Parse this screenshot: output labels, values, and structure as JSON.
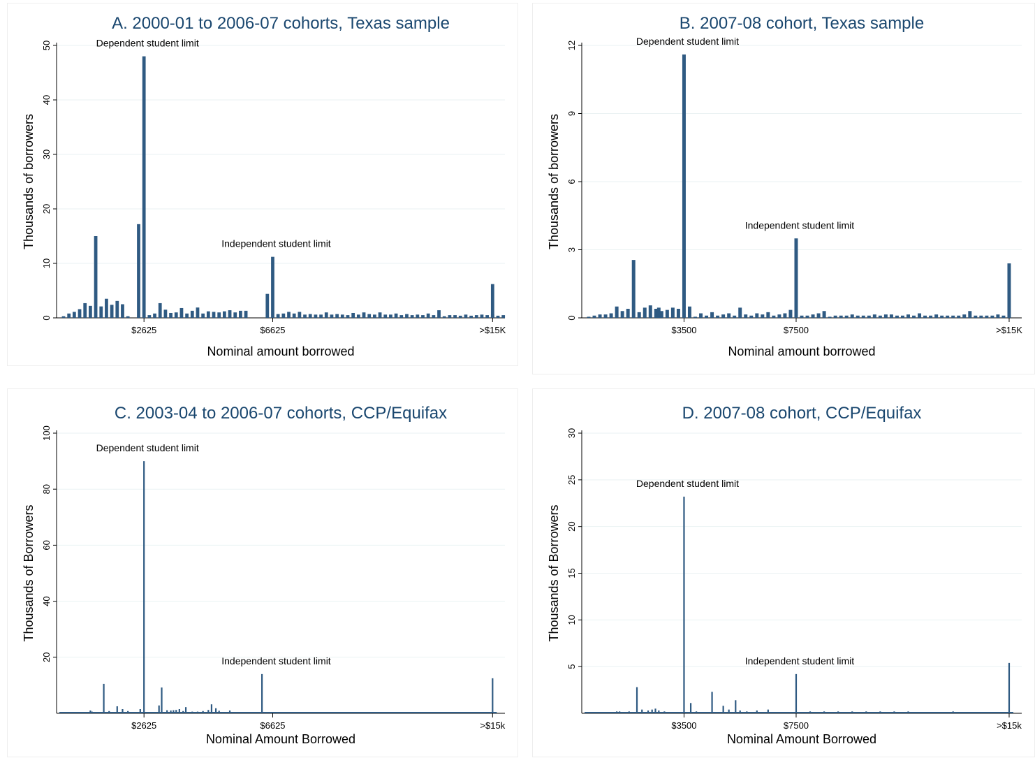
{
  "colors": {
    "bar": "#2f5a82",
    "title": "#1a476f",
    "grid": "#eaf2f3"
  },
  "chart_data": [
    {
      "type": "bar",
      "title": "A. 2000-01 to 2006-07 cohorts, Texas sample",
      "xlabel": "Nominal amount borrowed",
      "ylabel": "Thousands of borrowers",
      "ylim": [
        0,
        50
      ],
      "yticks": [
        0,
        10,
        20,
        30,
        40,
        50
      ],
      "xticks": [
        {
          "label": "$2625",
          "bin": 15
        },
        {
          "label": "$6625",
          "bin": 39
        },
        {
          "label": ">$15K",
          "bin": 80
        }
      ],
      "grid": true,
      "bar_style": "bar",
      "annotations": [
        {
          "text": "Dependent student limit",
          "bin": 15,
          "y": 48
        },
        {
          "text": "Independent student limit",
          "bin": 39,
          "y": 11.2
        }
      ],
      "values": [
        0.3,
        0.8,
        1.1,
        1.6,
        2.7,
        2.2,
        15,
        2.1,
        3.5,
        2.4,
        3.1,
        2.5,
        0.3,
        17.2,
        48,
        0.5,
        0.8,
        2.7,
        1.5,
        0.9,
        1.0,
        1.8,
        0.8,
        1.3,
        1.9,
        0.8,
        1.2,
        1.1,
        1.0,
        1.2,
        1.4,
        1.0,
        1.3,
        1.3,
        4.4,
        11.2,
        0.7,
        0.8,
        1.1,
        0.8,
        1.1,
        0.6,
        0.7,
        0.6,
        0.6,
        1.0,
        0.6,
        0.7,
        0.6,
        0.5,
        0.9,
        0.6,
        1.0,
        0.7,
        0.6,
        1.0,
        0.6,
        0.6,
        0.8,
        0.5,
        0.7,
        0.5,
        0.6,
        0.5,
        0.8,
        0.5,
        1.4,
        0.3,
        0.5,
        0.5,
        0.4,
        0.6,
        0.4,
        0.5,
        0.6,
        0.5,
        0.6,
        0.4,
        0.5,
        6.2
      ],
      "value_bins": [
        0,
        1,
        2,
        3,
        4,
        5,
        6,
        7,
        8,
        9,
        10,
        11,
        12,
        14,
        15,
        16,
        17,
        18,
        19,
        20,
        21,
        22,
        23,
        24,
        25,
        26,
        27,
        28,
        29,
        30,
        31,
        32,
        33,
        34,
        38,
        39,
        40,
        41,
        42,
        43,
        44,
        45,
        46,
        47,
        48,
        49,
        50,
        51,
        52,
        53,
        54,
        55,
        56,
        57,
        58,
        59,
        60,
        61,
        62,
        63,
        64,
        65,
        66,
        67,
        68,
        69,
        70,
        71,
        72,
        73,
        74,
        75,
        76,
        77,
        78,
        79,
        80,
        81,
        82,
        80
      ]
    },
    {
      "type": "bar",
      "title": "B. 2007-08 cohort, Texas sample",
      "xlabel": "Nominal amount borrowed",
      "ylabel": "Thousands of borrowers",
      "ylim": [
        0,
        12
      ],
      "yticks": [
        0,
        3,
        6,
        9,
        12
      ],
      "xticks": [
        {
          "label": "$3500",
          "bin": 17
        },
        {
          "label": "$7500",
          "bin": 37
        },
        {
          "label": ">$15K",
          "bin": 75
        }
      ],
      "grid": true,
      "bar_style": "bar",
      "annotations": [
        {
          "text": "Dependent student limit",
          "bin": 17,
          "y": 11.6
        },
        {
          "text": "Independent student limit",
          "bin": 37,
          "y": 3.5
        }
      ],
      "values": [
        0.05,
        0.1,
        0.15,
        0.15,
        0.2,
        0.5,
        0.3,
        0.4,
        2.55,
        0.25,
        0.45,
        0.55,
        0.4,
        0.45,
        0.3,
        0.35,
        0.45,
        0.4,
        11.6,
        0.5,
        0.05,
        0.2,
        0.1,
        0.25,
        0.1,
        0.15,
        0.2,
        0.1,
        0.45,
        0.15,
        0.1,
        0.2,
        0.15,
        0.25,
        0.1,
        0.15,
        0.2,
        0.35,
        3.5,
        0.1,
        0.1,
        0.15,
        0.2,
        0.3,
        0.05,
        0.1,
        0.1,
        0.1,
        0.15,
        0.1,
        0.1,
        0.1,
        0.15,
        0.1,
        0.15,
        0.15,
        0.1,
        0.1,
        0.15,
        0.1,
        0.2,
        0.1,
        0.1,
        0.15,
        0.1,
        0.1,
        0.1,
        0.1,
        0.15,
        0.3,
        0.1,
        0.1,
        0.1,
        0.1,
        0.15,
        0.1,
        2.4
      ],
      "value_bins": [
        0,
        1,
        2,
        3,
        4,
        5,
        6,
        7,
        8,
        9,
        10,
        11,
        12,
        12.5,
        13,
        14,
        15,
        16,
        17,
        18,
        19,
        20,
        21,
        22,
        23,
        24,
        25,
        26,
        27,
        28,
        29,
        30,
        31,
        32,
        33,
        34,
        35,
        36,
        37,
        38,
        39,
        40,
        41,
        42,
        43,
        44,
        45,
        46,
        47,
        48,
        49,
        50,
        51,
        52,
        53,
        54,
        55,
        56,
        57,
        58,
        59,
        60,
        61,
        62,
        63,
        64,
        65,
        66,
        67,
        68,
        69,
        70,
        71,
        72,
        73,
        74,
        75
      ]
    },
    {
      "type": "bar",
      "title": "C. 2003-04 to 2006-07 cohorts, CCP/Equifax",
      "xlabel": "Nominal Amount Borrowed",
      "ylabel": "Thousands of Borrowers",
      "ylim": [
        0,
        100
      ],
      "yticks": [
        20,
        40,
        60,
        80,
        100
      ],
      "xticks": [
        {
          "label": "$2625",
          "bin": 15
        },
        {
          "label": "$6625",
          "bin": 39
        },
        {
          "label": ">$15k",
          "bin": 80
        }
      ],
      "grid": true,
      "bar_style": "spike",
      "annotations": [
        {
          "text": "Dependent student limit",
          "bin": 15,
          "y": 90
        },
        {
          "text": "Independent student limit",
          "bin": 39,
          "y": 14
        }
      ],
      "values": [
        0.3,
        1.0,
        0.6,
        10.5,
        0.8,
        2.5,
        1.5,
        0.8,
        0.5,
        1.5,
        90,
        0.4,
        0.5,
        2.8,
        9.2,
        1.1,
        1.0,
        1.1,
        1.2,
        1.5,
        0.8,
        2.2,
        0.6,
        0.6,
        0.8,
        1.2,
        3.2,
        1.8,
        0.9,
        1.0,
        14,
        0.5,
        0.4,
        0.4,
        0.5,
        0.4,
        0.4,
        0.4,
        0.3,
        0.4,
        12.5
      ],
      "value_bins": [
        4,
        5,
        5.3,
        7.5,
        8.5,
        10,
        11,
        12,
        13.5,
        14.3,
        15,
        15.6,
        16.8,
        17.8,
        18.3,
        19.3,
        20.0,
        20.5,
        21.0,
        21.6,
        22.3,
        22.8,
        24,
        25,
        26,
        27,
        27.6,
        28.4,
        29,
        31,
        37,
        41,
        42,
        43,
        48,
        53,
        58,
        63,
        68,
        73,
        80
      ]
    },
    {
      "type": "bar",
      "title": "D. 2007-08 cohort, CCP/Equifax",
      "xlabel": "Nominal Amount Borrowed",
      "ylabel": "Thousands of Borrowers",
      "ylim": [
        0,
        30
      ],
      "yticks": [
        5,
        10,
        15,
        20,
        25,
        30
      ],
      "xticks": [
        {
          "label": "$3500",
          "bin": 17
        },
        {
          "label": "$7500",
          "bin": 37
        },
        {
          "label": ">$15k",
          "bin": 75
        }
      ],
      "grid": true,
      "bar_style": "spike",
      "annotations": [
        {
          "text": "Dependent student limit",
          "bin": 17,
          "y": 23.2
        },
        {
          "text": "Independent student limit",
          "bin": 37,
          "y": 4.2
        }
      ],
      "values": [
        0.2,
        0.2,
        0.2,
        2.8,
        0.4,
        0.3,
        0.4,
        0.5,
        0.3,
        0.2,
        23.2,
        1.1,
        0.2,
        2.3,
        0.8,
        0.4,
        1.4,
        0.3,
        0.2,
        0.3,
        0.4,
        4.2,
        0.2,
        0.2,
        0.2,
        0.2,
        0.2,
        0.2,
        0.2,
        0.2,
        0.2,
        5.4
      ],
      "value_bins": [
        5,
        5.5,
        7.2,
        8.6,
        9.5,
        10.6,
        11.3,
        11.9,
        12.5,
        13.5,
        17,
        18.2,
        19.2,
        22,
        24,
        25,
        26.2,
        27,
        28.2,
        30,
        32,
        37,
        39.5,
        42,
        44.5,
        47,
        49.5,
        52,
        54.5,
        57,
        65,
        75
      ]
    }
  ]
}
